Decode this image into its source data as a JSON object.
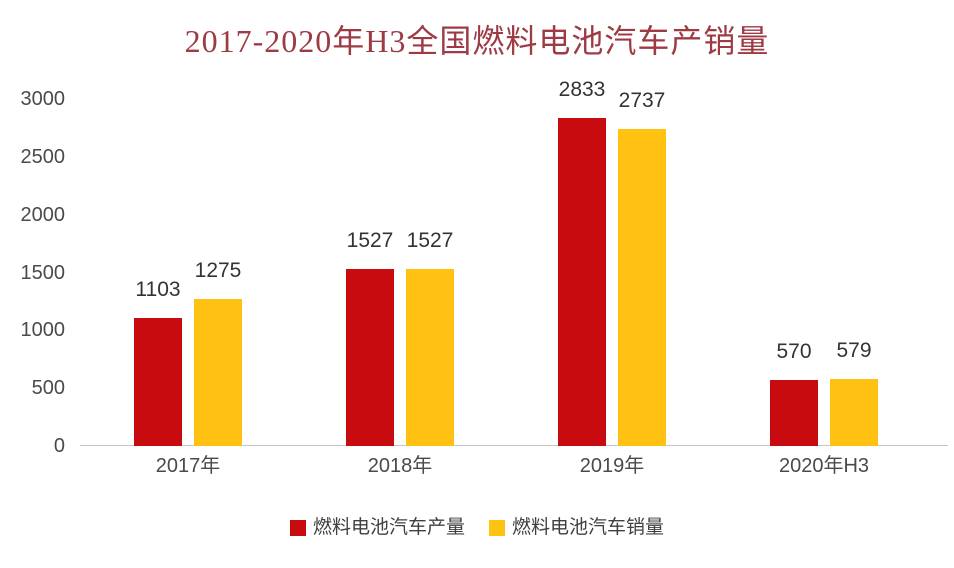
{
  "chart_data": {
    "type": "bar",
    "title": "2017-2020年H3全国燃料电池汽车产销量",
    "categories": [
      "2017年",
      "2018年",
      "2019年",
      "2020年H3"
    ],
    "series": [
      {
        "name": "燃料电池汽车产量",
        "color": "#C80B0E",
        "values": [
          1103,
          1527,
          2833,
          570
        ]
      },
      {
        "name": "燃料电池汽车销量",
        "color": "#FFC212",
        "values": [
          1275,
          1527,
          2737,
          579
        ]
      }
    ],
    "xlabel": "",
    "ylabel": "",
    "ylim": [
      0,
      3000
    ],
    "yticks": [
      0,
      500,
      1000,
      1500,
      2000,
      2500,
      3000
    ],
    "grid": false,
    "legend_position": "bottom",
    "value_labels": true
  },
  "colors": {
    "title": "#9E3A44",
    "axis_text": "#4A4A4A",
    "value_label_text": "#333333",
    "legend_text": "#404040",
    "baseline": "#C6C6C6",
    "background": "#FFFFFF"
  }
}
